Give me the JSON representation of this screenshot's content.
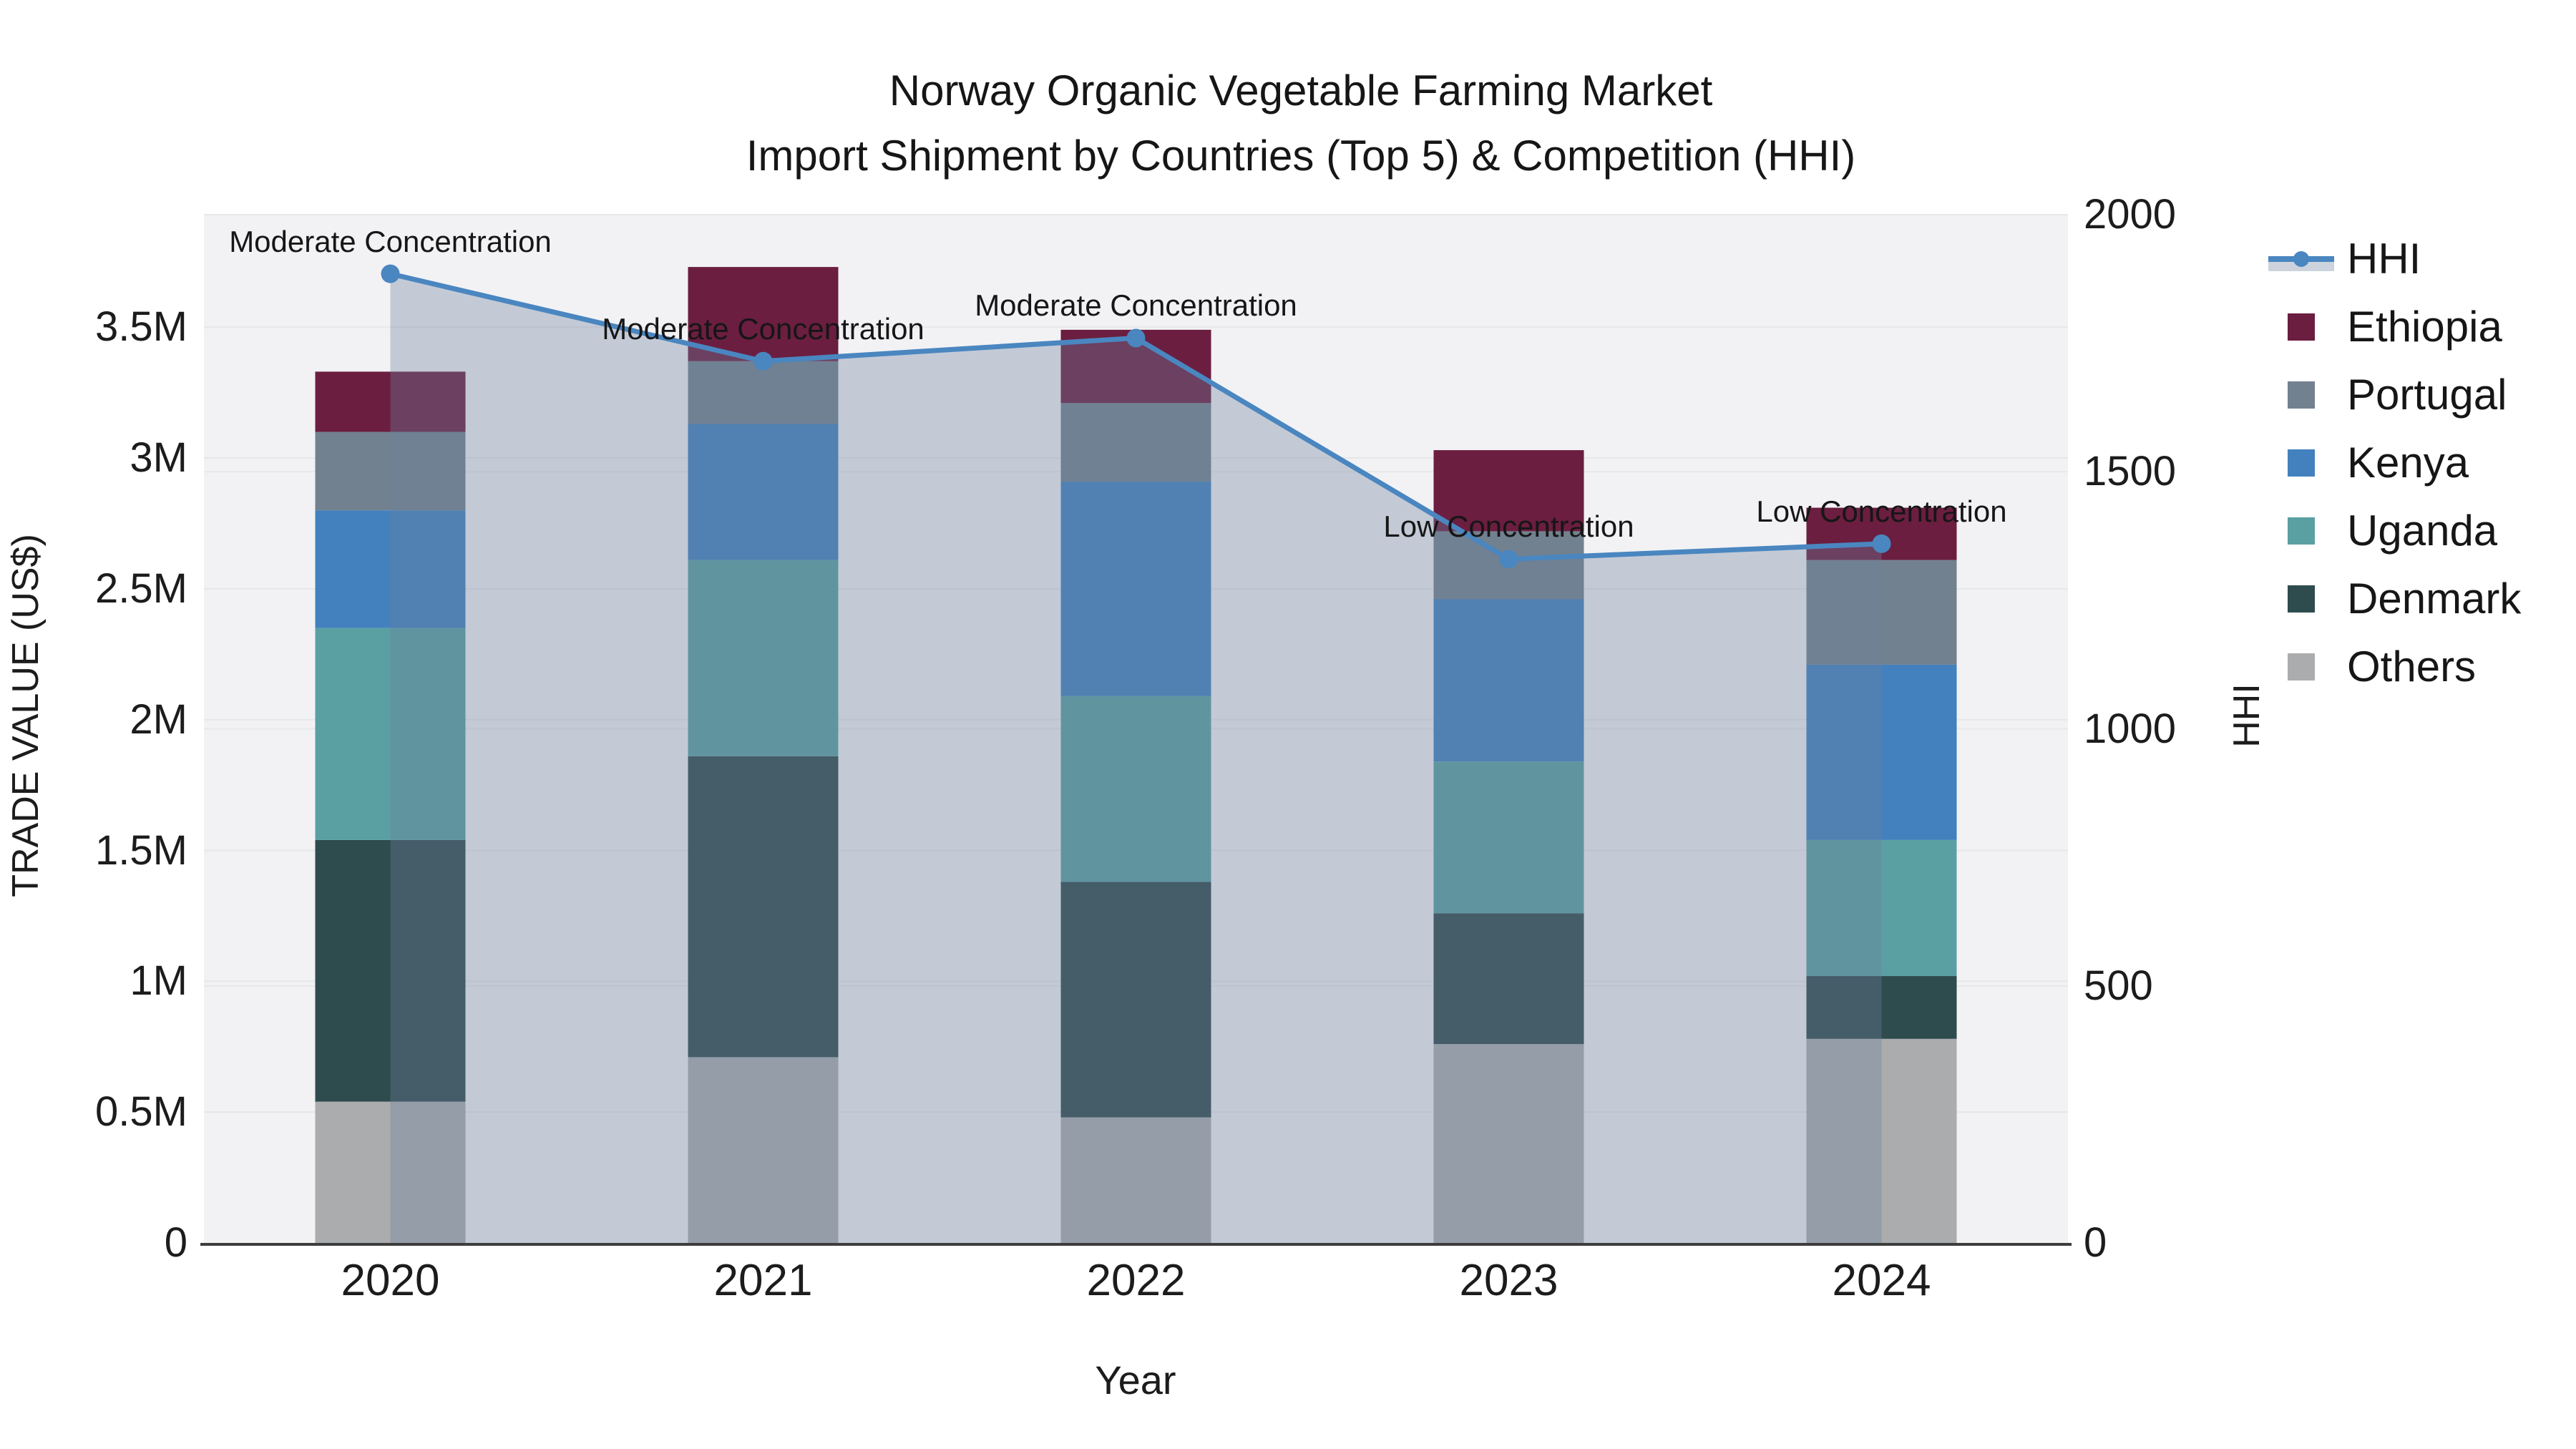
{
  "title": {
    "line1": "Norway Organic Vegetable Farming Market",
    "line2": "Import Shipment by Countries (Top 5) & Competition (HHI)"
  },
  "axes": {
    "x": {
      "title": "Year",
      "ticks": [
        "2020",
        "2021",
        "2022",
        "2023",
        "2024"
      ]
    },
    "y_left": {
      "title": "TRADE VALUE (US$)",
      "ticks": [
        "0",
        "0.5M",
        "1M",
        "1.5M",
        "2M",
        "2.5M",
        "3M",
        "3.5M"
      ],
      "tick_values_millions": [
        0,
        0.5,
        1,
        1.5,
        2,
        2.5,
        3,
        3.5
      ]
    },
    "y_right": {
      "title": "HHI",
      "ticks": [
        "0",
        "500",
        "1000",
        "1500",
        "2000"
      ],
      "tick_values": [
        0,
        500,
        1000,
        1500,
        2000
      ]
    }
  },
  "legend": {
    "items": [
      {
        "label": "HHI",
        "type": "line",
        "color": "#4A86C0"
      },
      {
        "label": "Ethiopia",
        "type": "swatch",
        "color": "#6B1E40"
      },
      {
        "label": "Portugal",
        "type": "swatch",
        "color": "#72818F"
      },
      {
        "label": "Kenya",
        "type": "swatch",
        "color": "#4381BE"
      },
      {
        "label": "Uganda",
        "type": "swatch",
        "color": "#5AA0A2"
      },
      {
        "label": "Denmark",
        "type": "swatch",
        "color": "#2E4B4E"
      },
      {
        "label": "Others",
        "type": "swatch",
        "color": "#AAACAE"
      }
    ]
  },
  "annotations": [
    {
      "year": "2020",
      "text": "Moderate Concentration"
    },
    {
      "year": "2021",
      "text": "Moderate Concentration"
    },
    {
      "year": "2022",
      "text": "Moderate Concentration"
    },
    {
      "year": "2023",
      "text": "Low Concentration"
    },
    {
      "year": "2024",
      "text": "Low Concentration"
    }
  ],
  "chart_data": {
    "type": "bar+line",
    "categories": [
      "2020",
      "2021",
      "2022",
      "2023",
      "2024"
    ],
    "unit": "million US$",
    "stack_order_bottom_to_top": [
      "Others",
      "Denmark",
      "Uganda",
      "Kenya",
      "Portugal",
      "Ethiopia"
    ],
    "series": [
      {
        "name": "Ethiopia",
        "color": "#6B1E40",
        "values": [
          0.23,
          0.36,
          0.28,
          0.31,
          0.2
        ]
      },
      {
        "name": "Portugal",
        "color": "#72818F",
        "values": [
          0.3,
          0.24,
          0.3,
          0.26,
          0.4
        ]
      },
      {
        "name": "Kenya",
        "color": "#4381BE",
        "values": [
          0.45,
          0.52,
          0.82,
          0.62,
          0.67
        ]
      },
      {
        "name": "Uganda",
        "color": "#5AA0A2",
        "values": [
          0.81,
          0.75,
          0.71,
          0.58,
          0.52
        ]
      },
      {
        "name": "Denmark",
        "color": "#2E4B4E",
        "values": [
          1.0,
          1.15,
          0.9,
          0.5,
          0.24
        ]
      },
      {
        "name": "Others",
        "color": "#AAACAE",
        "values": [
          0.54,
          0.71,
          0.48,
          0.76,
          0.78
        ]
      }
    ],
    "bar_totals_millions": [
      3.33,
      3.73,
      3.49,
      3.03,
      2.81
    ],
    "line_series": {
      "name": "HHI",
      "color": "#4A86C0",
      "fill_color": "rgba(110,130,158,0.35)",
      "values": [
        1885,
        1715,
        1760,
        1330,
        1360
      ],
      "point_labels": [
        "Moderate Concentration",
        "Moderate Concentration",
        "Moderate Concentration",
        "Low Concentration",
        "Low Concentration"
      ]
    },
    "ylim_left_millions": [
      0,
      3.93
    ],
    "ylim_right": [
      0,
      2000
    ],
    "grid": true,
    "legend_position": "right",
    "plot_background": "#f2f2f4"
  }
}
